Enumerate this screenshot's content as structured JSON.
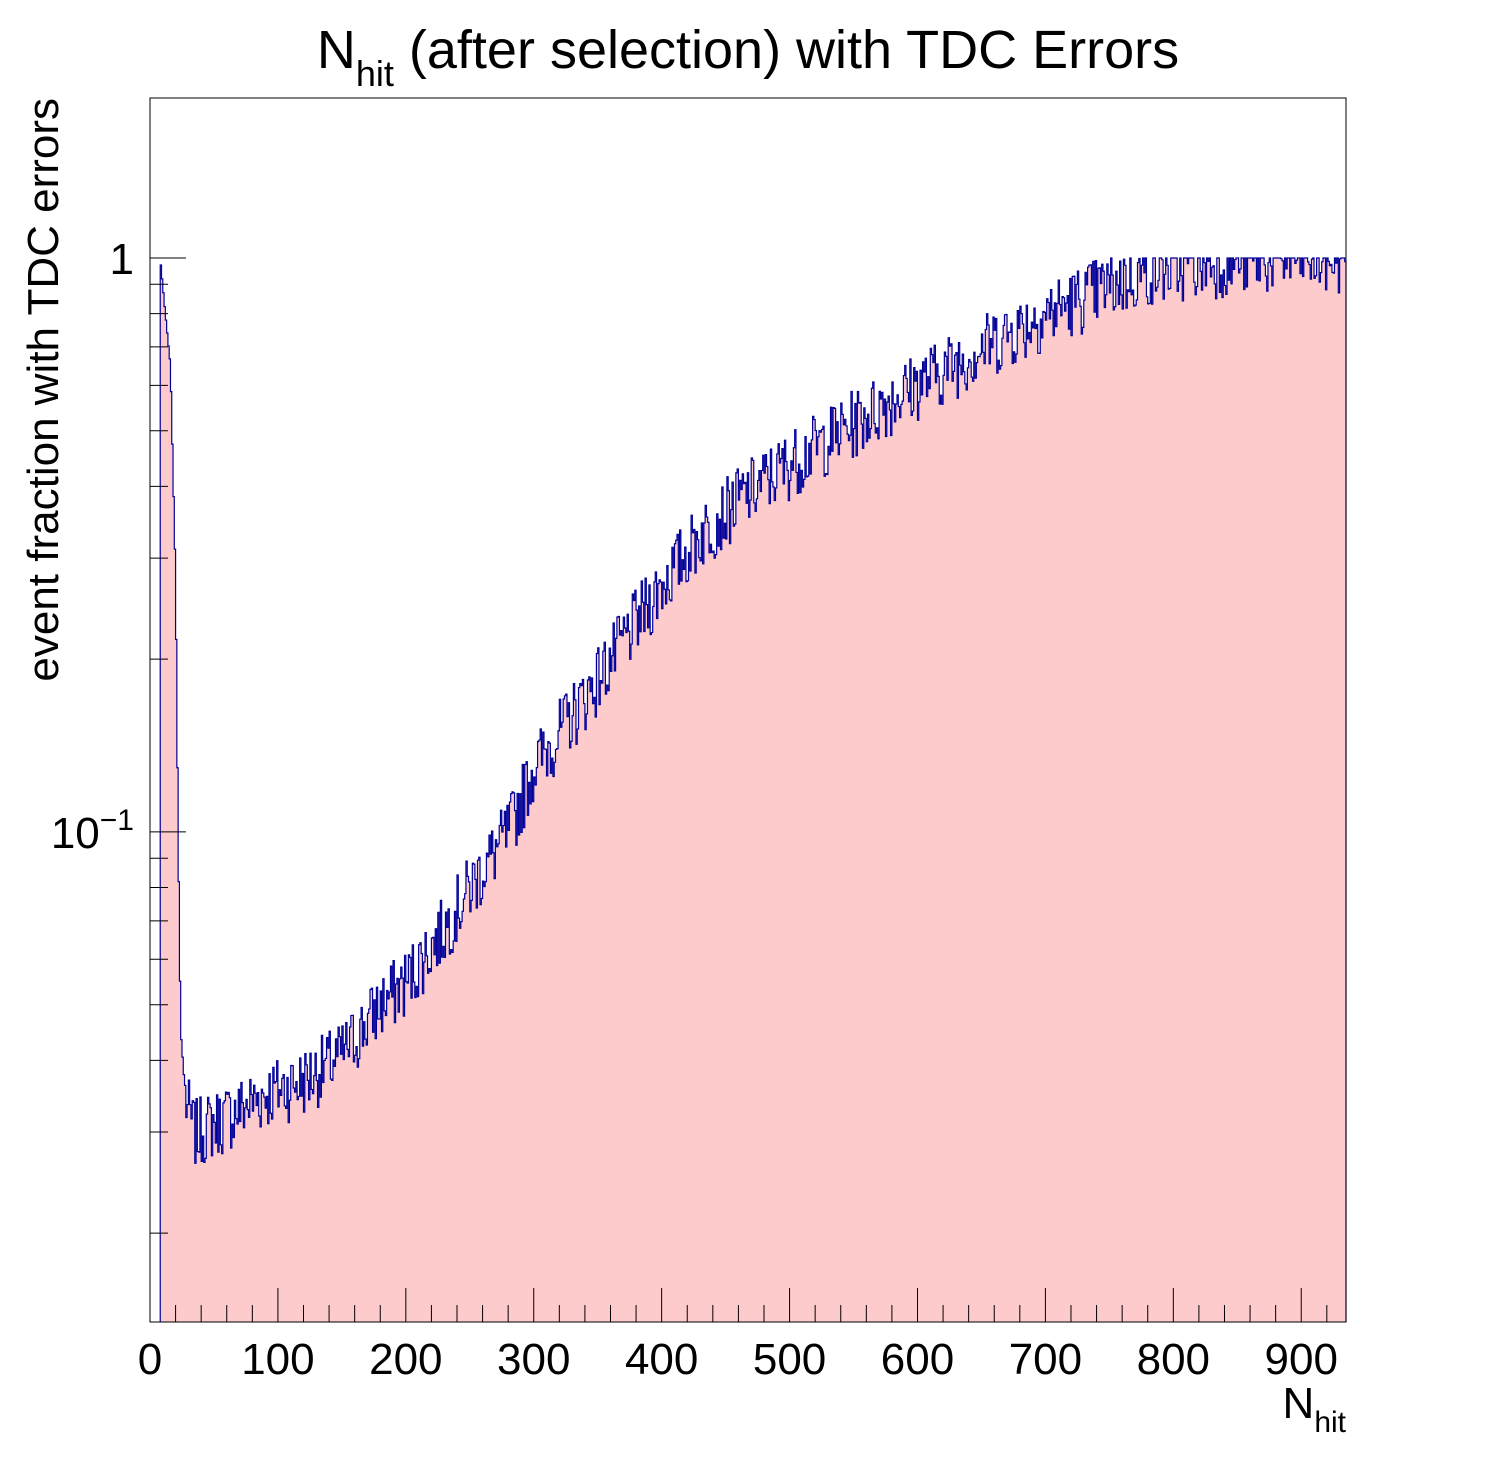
{
  "chart_data": {
    "type": "histogram",
    "title": "N",
    "title_sub": "hit",
    "title_rest": " (after selection) with TDC Errors",
    "xlabel": "N",
    "xlabel_sub": "hit",
    "ylabel": "event fraction with TDC errors",
    "x_range": [
      0,
      935
    ],
    "y_scale": "log",
    "y_range": [
      0.014,
      1.9
    ],
    "x_ticks": [
      0,
      100,
      200,
      300,
      400,
      500,
      600,
      700,
      800,
      900
    ],
    "x_tick_labels": [
      "0",
      "100",
      "200",
      "300",
      "400",
      "500",
      "600",
      "700",
      "800",
      "900"
    ],
    "y_tick_labels": [
      {
        "value": 1,
        "base": "1",
        "exp": ""
      },
      {
        "value": 0.1,
        "base": "10",
        "exp": "−1"
      }
    ],
    "fill_color": "#fdcbcc",
    "line_color": "#000099",
    "bin_width": 1,
    "grid": false,
    "legend": "none",
    "key_points": [
      [
        8,
        1.0
      ],
      [
        12,
        0.8
      ],
      [
        16,
        0.65
      ],
      [
        20,
        0.28
      ],
      [
        22,
        0.1
      ],
      [
        24,
        0.045
      ],
      [
        28,
        0.034
      ],
      [
        35,
        0.03
      ],
      [
        60,
        0.032
      ],
      [
        90,
        0.035
      ],
      [
        120,
        0.037
      ],
      [
        150,
        0.041
      ],
      [
        180,
        0.05
      ],
      [
        200,
        0.055
      ],
      [
        230,
        0.068
      ],
      [
        250,
        0.08
      ],
      [
        280,
        0.1
      ],
      [
        300,
        0.13
      ],
      [
        330,
        0.16
      ],
      [
        360,
        0.2
      ],
      [
        400,
        0.27
      ],
      [
        430,
        0.33
      ],
      [
        460,
        0.38
      ],
      [
        500,
        0.44
      ],
      [
        540,
        0.5
      ],
      [
        580,
        0.57
      ],
      [
        620,
        0.64
      ],
      [
        660,
        0.72
      ],
      [
        700,
        0.8
      ],
      [
        740,
        0.88
      ],
      [
        780,
        0.95
      ],
      [
        820,
        0.98
      ],
      [
        860,
        1.0
      ],
      [
        900,
        1.0
      ],
      [
        930,
        1.0
      ]
    ]
  }
}
